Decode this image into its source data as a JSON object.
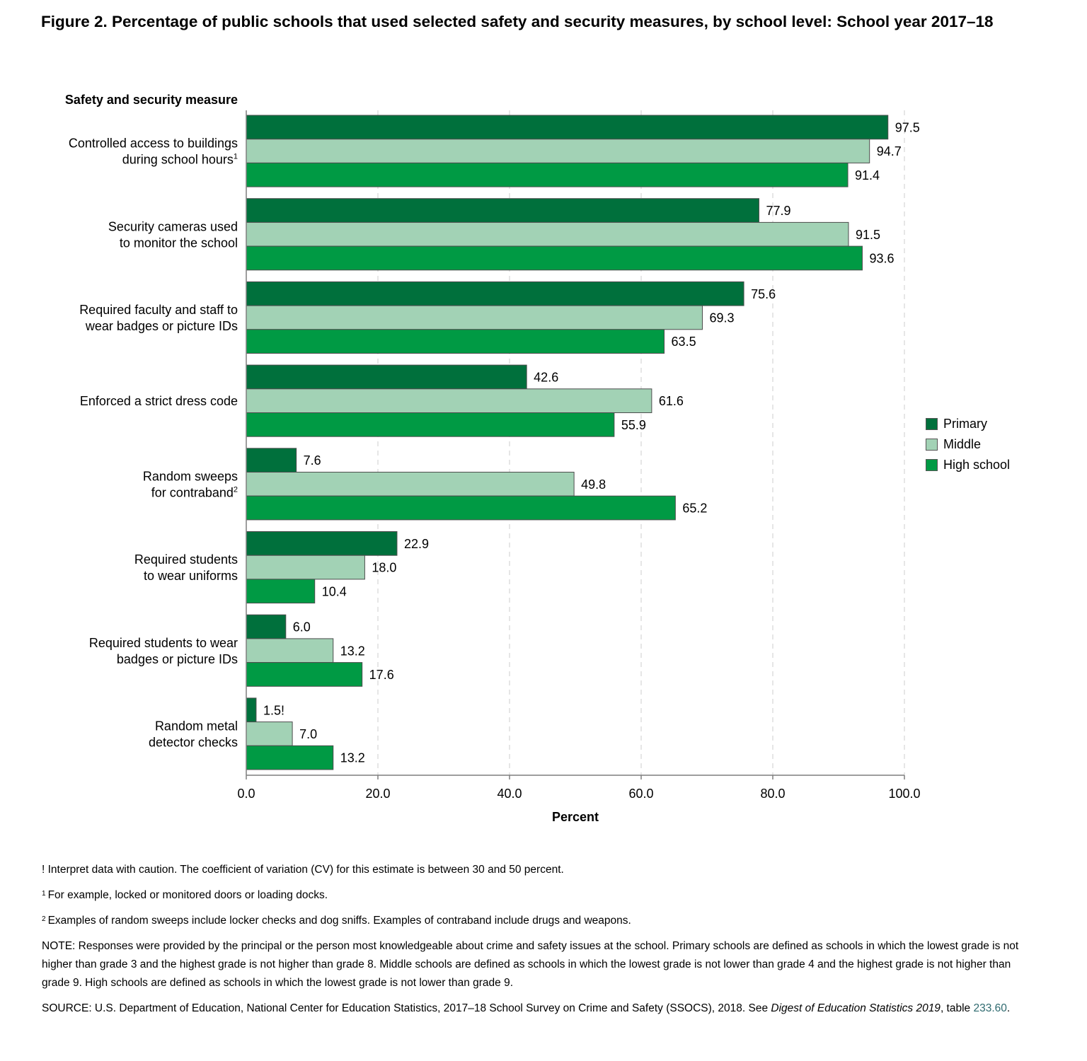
{
  "title": "Figure 2. Percentage of public schools that used selected safety and security measures, by school level: School year 2017–18",
  "colors": {
    "primary": "#00703c",
    "middle": "#a2d2b5",
    "high": "#009a44",
    "grid": "#d9d9d9",
    "axis": "#7f7f7f",
    "link": "#2e6a6f"
  },
  "chart_data": {
    "type": "bar",
    "orientation": "horizontal",
    "title": "Figure 2. Percentage of public schools that used selected safety and security measures, by school level: School year 2017–18",
    "ylabel": "Safety and security measure",
    "xlabel": "Percent",
    "xlim": [
      0,
      100
    ],
    "xticks": [
      "0.0",
      "20.0",
      "40.0",
      "60.0",
      "80.0",
      "100.0"
    ],
    "xtick_values": [
      0,
      20,
      40,
      60,
      80,
      100
    ],
    "grid": "vertical dashed",
    "legend_position": "right",
    "categories": [
      {
        "lines": [
          "Controlled access to buildings",
          "during school hours"
        ],
        "sup": "1"
      },
      {
        "lines": [
          "Security cameras used",
          "to monitor the school"
        ],
        "sup": ""
      },
      {
        "lines": [
          "Required faculty and staff to",
          "wear badges or picture IDs"
        ],
        "sup": ""
      },
      {
        "lines": [
          "Enforced a strict dress code"
        ],
        "sup": ""
      },
      {
        "lines": [
          "Random sweeps",
          "for contraband"
        ],
        "sup": "2"
      },
      {
        "lines": [
          "Required students",
          "to wear uniforms"
        ],
        "sup": ""
      },
      {
        "lines": [
          "Required students to wear",
          "badges or picture IDs"
        ],
        "sup": ""
      },
      {
        "lines": [
          "Random metal",
          "detector checks"
        ],
        "sup": ""
      }
    ],
    "series": [
      {
        "name": "Primary",
        "key": "primary",
        "values": [
          97.5,
          77.9,
          75.6,
          42.6,
          7.6,
          22.9,
          6.0,
          1.5
        ],
        "labels": [
          "97.5",
          "77.9",
          "75.6",
          "42.6",
          "7.6",
          "22.9",
          "6.0",
          "1.5!"
        ]
      },
      {
        "name": "Middle",
        "key": "middle",
        "values": [
          94.7,
          91.5,
          69.3,
          61.6,
          49.8,
          18.0,
          13.2,
          7.0
        ],
        "labels": [
          "94.7",
          "91.5",
          "69.3",
          "61.6",
          "49.8",
          "18.0",
          "13.2",
          "7.0"
        ]
      },
      {
        "name": "High school",
        "key": "high",
        "values": [
          91.4,
          93.6,
          63.5,
          55.9,
          65.2,
          10.4,
          17.6,
          13.2
        ],
        "labels": [
          "91.4",
          "93.6",
          "63.5",
          "55.9",
          "65.2",
          "10.4",
          "17.6",
          "13.2"
        ]
      }
    ]
  },
  "notes": {
    "caution": "! Interpret data with caution. The coefficient of variation (CV) for this estimate is between 30 and 50 percent.",
    "fn1_mark": "1",
    "fn1": "For example, locked or monitored doors or loading docks.",
    "fn2_mark": "2",
    "fn2": "Examples of random sweeps include locker checks and dog sniffs. Examples of contraband include drugs and weapons.",
    "note": "NOTE: Responses were provided by the principal or the person most knowledgeable about crime and safety issues at the school. Primary schools are defined as schools in which the lowest grade is not higher than grade 3 and the highest grade is not higher than grade 8. Middle schools are defined as schools in which the lowest grade is not lower than grade 4 and the highest grade is not higher than grade 9. High schools are defined as schools in which the lowest grade is not lower than grade 9.",
    "source_prefix": "SOURCE: U.S. Department of Education, National Center for Education Statistics, 2017–18 School Survey on Crime and Safety (SSOCS), 2018. See ",
    "source_pub": "Digest of Education Statistics 2019",
    "source_mid": ", table ",
    "source_table": "233.60",
    "source_end": "."
  }
}
